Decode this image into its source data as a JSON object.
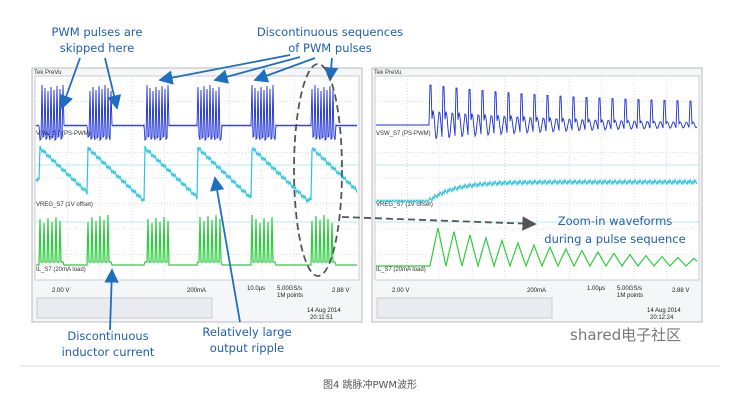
{
  "annotations": {
    "skipped": [
      "PWM pulses are",
      "skipped here"
    ],
    "sequences": [
      "Discontinuous sequences",
      "of PWM pulses"
    ],
    "zoom": [
      "Zoom-in waveforms",
      "during a pulse sequence"
    ],
    "inductor": [
      "Discontinuous",
      "inductor current"
    ],
    "ripple": [
      "Relatively large",
      "output ripple"
    ]
  },
  "left_scope": {
    "header": "Tek PreVu",
    "channels": [
      "VSW_S7 (PS-PWM)",
      "VREG_S7 (1V offset)",
      "IL_S7 (20mA load)"
    ],
    "status": [
      "2.00 V",
      "200mA",
      "10.0µs",
      "5.00GS/s",
      "1M points",
      "2.88 V"
    ],
    "date": [
      "14 Aug 2014",
      "20:11:51"
    ]
  },
  "right_scope": {
    "header": "Tek PreVu",
    "channels": [
      "VSW_S7 (PS-PWM)",
      "VREG_S7 (1V offset)",
      "IL_S7 (20mA load)"
    ],
    "status": [
      "2.00 V",
      "200mA",
      "1.00µs",
      "5.00GS/s",
      "1M points",
      "2.88 V"
    ],
    "date": [
      "14 Aug 2014",
      "20:12:24"
    ]
  },
  "watermark": "shared电子社区",
  "caption": "图4 跳脉冲PWM波形"
}
